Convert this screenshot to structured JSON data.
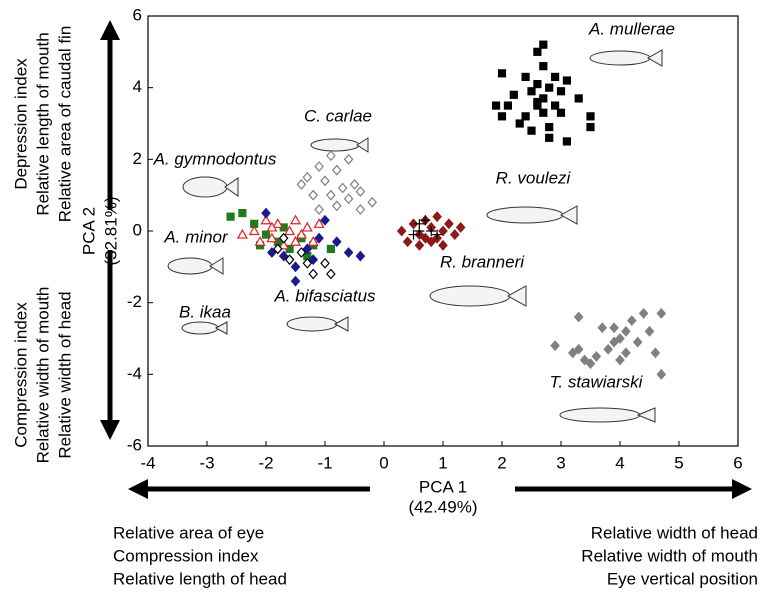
{
  "chart_data": {
    "type": "scatter",
    "xlabel": [
      "PCA 1",
      "(42.49%)"
    ],
    "ylabel": [
      "PCA 2",
      "(32.81%)"
    ],
    "top_axis_note": [
      "Depression index",
      "Relative length of mouth",
      "Relative area of caudal fin"
    ],
    "bottom_axis_note": [
      "Compression index",
      "Relative width of mouth",
      "Relative width of head"
    ],
    "left_axis_note": [
      "Relative area of eye",
      "Compression index",
      "Relative length of head"
    ],
    "right_axis_note": [
      "Relative width of head",
      "Relative width of mouth",
      "Eye vertical position"
    ],
    "annotations": [
      "A. mullerae",
      "C. carlae",
      "A. gymnodontus",
      "R. voulezi",
      "A. minor",
      "R. branneri",
      "A. bifasciatus",
      "B. ikaa",
      "T. stawiarski"
    ],
    "xlim": [
      -4,
      6
    ],
    "ylim": [
      -6,
      6
    ],
    "xticks": [
      -4,
      -3,
      -2,
      -1,
      0,
      1,
      2,
      3,
      4,
      5,
      6
    ],
    "yticks": [
      -6,
      -4,
      -2,
      0,
      2,
      4,
      6
    ],
    "series": [
      {
        "color": "#000000",
        "marker": "square",
        "filled": true,
        "x": [
          2.7,
          2.6,
          2.7,
          2.0,
          2.4,
          2.9,
          3.1,
          2.6,
          2.8,
          2.5,
          3.0,
          2.2,
          2.7,
          3.3,
          2.1,
          2.6,
          2.9,
          2.0,
          2.4,
          2.7,
          3.0,
          2.3,
          2.5,
          2.8,
          3.5,
          3.5,
          2.8,
          3.1,
          1.9,
          2.6
        ],
        "y": [
          5.2,
          5.0,
          4.6,
          4.4,
          4.3,
          4.3,
          4.2,
          4.1,
          4.0,
          3.9,
          3.9,
          3.8,
          3.7,
          3.7,
          3.5,
          3.5,
          3.5,
          3.2,
          3.2,
          3.3,
          3.3,
          3.0,
          2.8,
          2.9,
          3.2,
          2.9,
          2.6,
          2.5,
          3.5,
          3.6
        ]
      },
      {
        "color": "#808080",
        "marker": "diamond",
        "filled": false,
        "x": [
          -0.9,
          -0.6,
          -1.1,
          -0.8,
          -1.3,
          -1.0,
          -0.5,
          -1.4,
          -0.7,
          -0.4,
          -0.9,
          -1.2,
          -0.6,
          -0.2,
          -0.8,
          -0.4,
          -1.1
        ],
        "y": [
          2.1,
          2.0,
          1.8,
          1.7,
          1.5,
          1.4,
          1.3,
          1.3,
          1.2,
          1.1,
          1.0,
          1.0,
          0.9,
          0.8,
          0.7,
          0.6,
          0.6
        ]
      },
      {
        "color": "#8b1a1a",
        "marker": "diamond",
        "filled": true,
        "x": [
          0.3,
          0.5,
          0.6,
          0.7,
          0.8,
          0.9,
          1.0,
          1.1,
          1.2,
          0.8,
          0.6,
          1.0,
          0.4,
          0.9,
          1.3,
          0.7
        ],
        "y": [
          0.0,
          0.2,
          -0.1,
          0.3,
          0.1,
          -0.2,
          0.0,
          0.2,
          -0.1,
          -0.3,
          -0.4,
          -0.4,
          -0.3,
          0.4,
          0.1,
          -0.2
        ]
      },
      {
        "color": "#000000",
        "marker": "plus",
        "filled": false,
        "x": [
          0.5,
          0.6,
          0.7,
          0.8,
          0.9,
          0.6
        ],
        "y": [
          -0.1,
          0.2,
          0.3,
          0.0,
          -0.1,
          0.0
        ]
      },
      {
        "color": "#808080",
        "marker": "diamond",
        "filled": true,
        "x": [
          3.3,
          2.9,
          3.2,
          3.4,
          3.6,
          3.7,
          3.9,
          4.0,
          3.8,
          4.1,
          4.3,
          4.2,
          4.5,
          4.6,
          4.7,
          4.4,
          4.0,
          3.5,
          4.7,
          3.3,
          4.1,
          3.9
        ],
        "y": [
          -2.4,
          -3.2,
          -3.4,
          -3.6,
          -3.5,
          -2.7,
          -2.7,
          -3.0,
          -3.3,
          -3.4,
          -3.1,
          -2.5,
          -2.8,
          -3.4,
          -2.3,
          -2.3,
          -3.6,
          -3.7,
          -4.0,
          -3.3,
          -2.8,
          -3.1
        ]
      },
      {
        "color": "#1e7b1e",
        "marker": "square",
        "filled": true,
        "x": [
          -2.6,
          -2.4,
          -2.2,
          -2.0,
          -1.8,
          -1.6,
          -1.4,
          -1.2,
          -0.9,
          -2.1,
          -1.7,
          -1.3
        ],
        "y": [
          0.4,
          0.5,
          0.2,
          -0.1,
          -0.3,
          -0.5,
          -0.2,
          -0.4,
          -0.5,
          -0.4,
          0.1,
          -0.7
        ]
      },
      {
        "color": "#e02020",
        "marker": "triangle",
        "filled": false,
        "x": [
          -2.4,
          -2.2,
          -2.0,
          -1.9,
          -1.8,
          -1.7,
          -1.6,
          -1.5,
          -1.4,
          -1.3,
          -1.2,
          -1.1,
          -2.1,
          -1.9,
          -1.5
        ],
        "y": [
          -0.1,
          0.0,
          0.3,
          -0.2,
          0.2,
          -0.4,
          0.0,
          0.3,
          -0.1,
          0.1,
          -0.3,
          0.2,
          -0.3,
          0.1,
          -0.3
        ]
      },
      {
        "color": "#1a1a8c",
        "marker": "diamond",
        "filled": true,
        "x": [
          -2.0,
          -1.9,
          -1.7,
          -1.5,
          -1.3,
          -1.1,
          -1.0,
          -0.8,
          -0.6,
          -0.4,
          -1.5,
          -1.2
        ],
        "y": [
          0.5,
          -0.6,
          -0.7,
          -1.0,
          -0.5,
          -0.2,
          0.3,
          -0.3,
          -0.6,
          -0.7,
          -1.4,
          -0.8
        ]
      },
      {
        "color": "#000000",
        "marker": "diamond",
        "filled": false,
        "x": [
          -1.8,
          -1.6,
          -1.4,
          -1.2,
          -1.0,
          -0.9,
          -1.7,
          -1.3
        ],
        "y": [
          -0.5,
          -0.8,
          -0.6,
          -1.2,
          -0.9,
          -1.2,
          -0.2,
          -0.9
        ]
      }
    ]
  }
}
